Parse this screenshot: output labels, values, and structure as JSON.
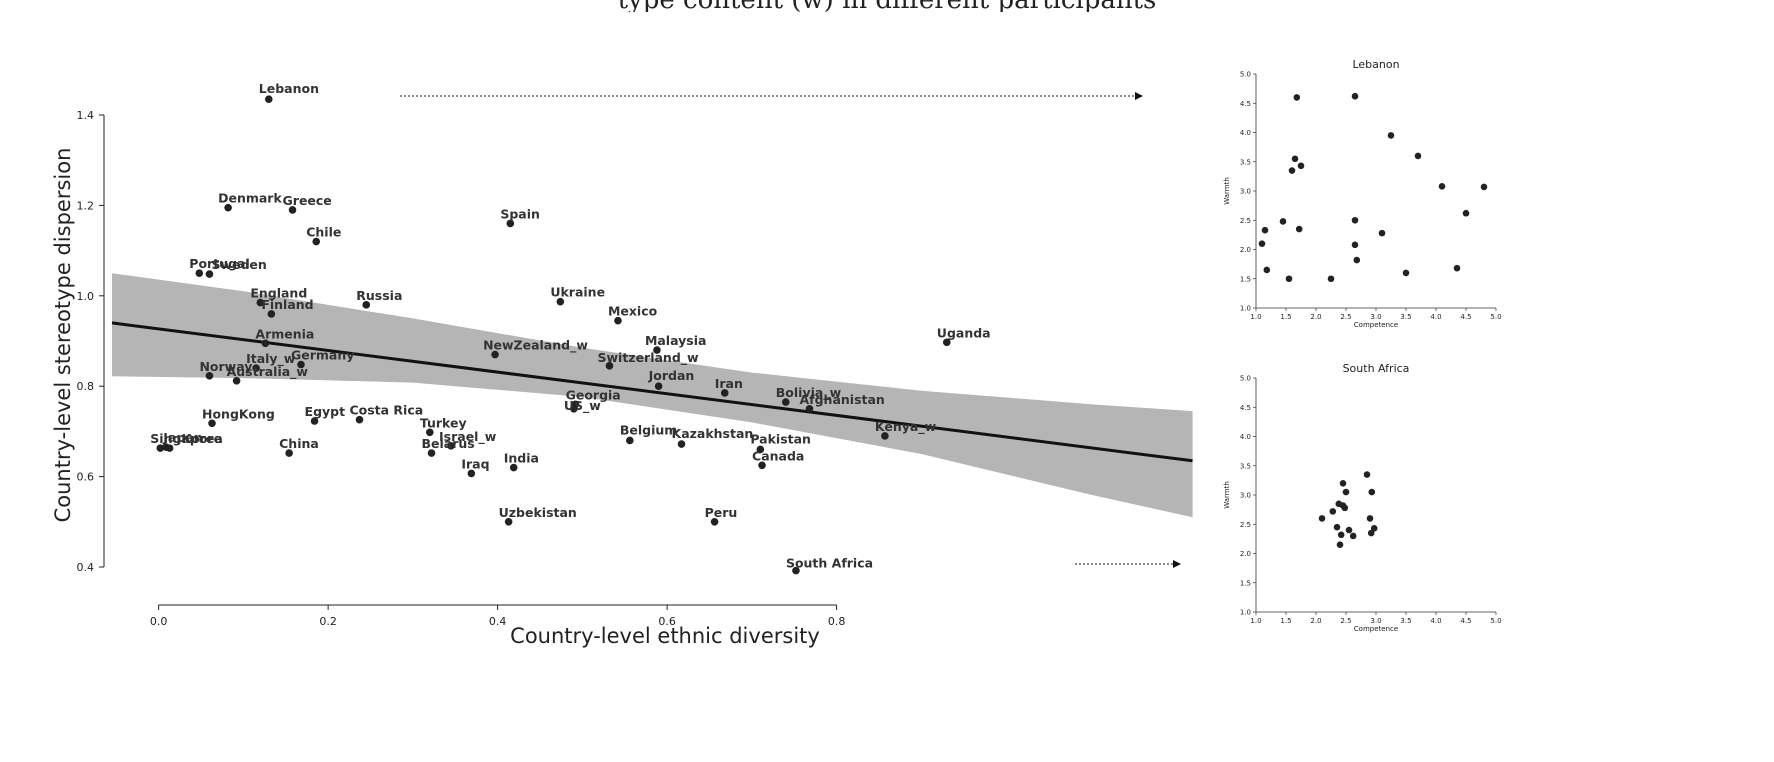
{
  "page": {
    "caption_fragment": "type content (w) in different participants"
  },
  "chart_data": [
    {
      "type": "scatter",
      "title": "",
      "xlabel": "Country-level ethnic diversity",
      "ylabel": "Country-level stereotype dispersion",
      "xlim": [
        -0.055,
        1.25
      ],
      "ylim": [
        0.35,
        1.44
      ],
      "xticks": [
        0.0,
        0.2,
        0.4,
        0.6,
        0.8
      ],
      "yticks": [
        0.4,
        0.6,
        0.8,
        1.0,
        1.2,
        1.4
      ],
      "grid": false,
      "regression": {
        "x": [
          -0.055,
          1.22
        ],
        "y": [
          0.94,
          0.635
        ]
      },
      "confidence_band": {
        "x": [
          -0.055,
          0.1,
          0.3,
          0.5,
          0.7,
          0.9,
          1.1,
          1.22
        ],
        "upper": [
          1.05,
          1.01,
          0.95,
          0.885,
          0.83,
          0.79,
          0.76,
          0.745
        ],
        "lower": [
          0.822,
          0.818,
          0.808,
          0.776,
          0.72,
          0.65,
          0.56,
          0.51
        ]
      },
      "points": [
        {
          "label": "Lebanon",
          "x": 0.13,
          "y": 1.435
        },
        {
          "label": "Denmark",
          "x": 0.082,
          "y": 1.195
        },
        {
          "label": "Greece",
          "x": 0.158,
          "y": 1.19
        },
        {
          "label": "Chile",
          "x": 0.186,
          "y": 1.12
        },
        {
          "label": "Spain",
          "x": 0.415,
          "y": 1.16
        },
        {
          "label": "Portugal",
          "x": 0.048,
          "y": 1.05
        },
        {
          "label": "Sweden",
          "x": 0.06,
          "y": 1.048
        },
        {
          "label": "England",
          "x": 0.12,
          "y": 0.985
        },
        {
          "label": "Finland",
          "x": 0.133,
          "y": 0.96
        },
        {
          "label": "Russia",
          "x": 0.245,
          "y": 0.98
        },
        {
          "label": "Ukraine",
          "x": 0.474,
          "y": 0.987
        },
        {
          "label": "Mexico",
          "x": 0.542,
          "y": 0.945
        },
        {
          "label": "Armenia",
          "x": 0.126,
          "y": 0.895
        },
        {
          "label": "NewZealand_w",
          "x": 0.397,
          "y": 0.87
        },
        {
          "label": "Malaysia",
          "x": 0.588,
          "y": 0.88
        },
        {
          "label": "Uganda",
          "x": 0.93,
          "y": 0.897
        },
        {
          "label": "Switzerland_w",
          "x": 0.532,
          "y": 0.845
        },
        {
          "label": "Italy_w",
          "x": 0.115,
          "y": 0.84
        },
        {
          "label": "Germany",
          "x": 0.168,
          "y": 0.848
        },
        {
          "label": "Norway",
          "x": 0.06,
          "y": 0.823
        },
        {
          "label": "Australia_w",
          "x": 0.092,
          "y": 0.812
        },
        {
          "label": "Jordan",
          "x": 0.59,
          "y": 0.8
        },
        {
          "label": "Iran",
          "x": 0.668,
          "y": 0.785
        },
        {
          "label": "Bolivia_w",
          "x": 0.74,
          "y": 0.765
        },
        {
          "label": "Afghanistan",
          "x": 0.768,
          "y": 0.75
        },
        {
          "label": "Georgia",
          "x": 0.492,
          "y": 0.76
        },
        {
          "label": "US_w",
          "x": 0.49,
          "y": 0.75
        },
        {
          "label": "HongKong",
          "x": 0.063,
          "y": 0.718
        },
        {
          "label": "Egypt",
          "x": 0.184,
          "y": 0.723
        },
        {
          "label": "Costa Rica",
          "x": 0.237,
          "y": 0.726
        },
        {
          "label": "Turkey",
          "x": 0.32,
          "y": 0.698
        },
        {
          "label": "Israel_w",
          "x": 0.345,
          "y": 0.668
        },
        {
          "label": "Belarus",
          "x": 0.322,
          "y": 0.652
        },
        {
          "label": "Belgium",
          "x": 0.556,
          "y": 0.68
        },
        {
          "label": "Kazakhstan",
          "x": 0.617,
          "y": 0.672
        },
        {
          "label": "Pakistan",
          "x": 0.71,
          "y": 0.66
        },
        {
          "label": "Kenya_w",
          "x": 0.857,
          "y": 0.69
        },
        {
          "label": "Canada",
          "x": 0.712,
          "y": 0.625
        },
        {
          "label": "Singapore",
          "x": 0.002,
          "y": 0.663
        },
        {
          "label": "Japan",
          "x": 0.009,
          "y": 0.665
        },
        {
          "label": "SouthKorea",
          "x": 0.013,
          "y": 0.663
        },
        {
          "label": "China",
          "x": 0.154,
          "y": 0.652
        },
        {
          "label": "Iraq",
          "x": 0.369,
          "y": 0.607
        },
        {
          "label": "India",
          "x": 0.419,
          "y": 0.62
        },
        {
          "label": "Uzbekistan",
          "x": 0.413,
          "y": 0.5
        },
        {
          "label": "Peru",
          "x": 0.656,
          "y": 0.5
        },
        {
          "label": "South Africa",
          "x": 0.752,
          "y": 0.392
        }
      ]
    },
    {
      "type": "scatter",
      "title": "Lebanon",
      "xlabel": "Competence",
      "ylabel": "Warmth",
      "xlim": [
        1.0,
        5.0
      ],
      "ylim": [
        1.0,
        5.0
      ],
      "ticks": [
        1.0,
        1.5,
        2.0,
        2.5,
        3.0,
        3.5,
        4.0,
        4.5,
        5.0
      ],
      "x": [
        1.1,
        1.15,
        1.18,
        1.45,
        1.55,
        1.6,
        1.65,
        1.68,
        1.72,
        1.75,
        2.25,
        2.65,
        2.65,
        2.65,
        2.68,
        3.1,
        3.25,
        3.5,
        3.7,
        4.1,
        4.35,
        4.5,
        4.8
      ],
      "y": [
        2.1,
        2.33,
        1.65,
        2.48,
        1.5,
        3.35,
        3.55,
        4.6,
        2.35,
        3.43,
        1.5,
        4.62,
        2.5,
        2.08,
        1.82,
        2.28,
        3.95,
        1.6,
        3.6,
        3.08,
        1.68,
        2.62,
        3.07
      ]
    },
    {
      "type": "scatter",
      "title": "South Africa",
      "xlabel": "Competence",
      "ylabel": "Warmth",
      "xlim": [
        1.0,
        5.0
      ],
      "ylim": [
        1.0,
        5.0
      ],
      "ticks": [
        1.0,
        1.5,
        2.0,
        2.5,
        3.0,
        3.5,
        4.0,
        4.5,
        5.0
      ],
      "x": [
        2.1,
        2.28,
        2.35,
        2.38,
        2.4,
        2.42,
        2.45,
        2.45,
        2.48,
        2.5,
        2.55,
        2.62,
        2.85,
        2.9,
        2.92,
        2.93,
        2.97
      ],
      "y": [
        2.6,
        2.72,
        2.45,
        2.85,
        2.15,
        2.32,
        2.82,
        3.2,
        2.78,
        3.05,
        2.4,
        2.3,
        3.35,
        2.6,
        2.35,
        3.05,
        2.43
      ]
    }
  ]
}
